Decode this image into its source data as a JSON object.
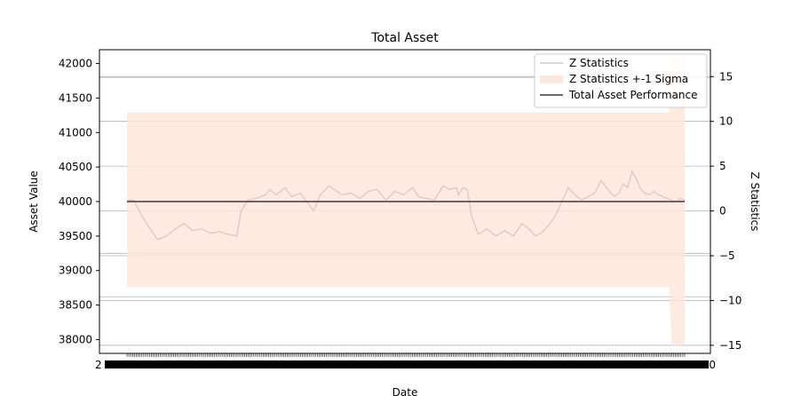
{
  "chart_data": {
    "type": "line",
    "title": "Total Asset",
    "xlabel": "Date",
    "ylabel": "Asset Value",
    "y2label": "Z Statistics",
    "ylim": [
      37800,
      42200
    ],
    "y2lim": [
      -15.9,
      18.0
    ],
    "yticks": [
      38000,
      38500,
      39000,
      39500,
      40000,
      40500,
      41000,
      41500,
      42000
    ],
    "y2ticks": [
      -15,
      -10,
      -5,
      0,
      5,
      10,
      15
    ],
    "x_tick_labels_overlapping": true,
    "x_tick_first_visible": "2",
    "x_tick_last_visible": "50",
    "grid": "horizontal, right axis",
    "legend_position": "top-right",
    "n_points": 300,
    "series": [
      {
        "name": "Z Statistics",
        "axis": "right",
        "color": "#d9c8c4",
        "points": [
          [
            0,
            1.2
          ],
          [
            6,
            1.2
          ],
          [
            12,
            -0.2
          ],
          [
            20,
            -1.8
          ],
          [
            28,
            -3.2
          ],
          [
            36,
            -2.8
          ],
          [
            44,
            -2.0
          ],
          [
            52,
            -1.4
          ],
          [
            60,
            -2.2
          ],
          [
            68,
            -2.0
          ],
          [
            76,
            -2.5
          ],
          [
            84,
            -2.3
          ],
          [
            92,
            -2.6
          ],
          [
            100,
            -2.8
          ],
          [
            104,
            0.0
          ],
          [
            110,
            1.2
          ],
          [
            118,
            1.4
          ],
          [
            126,
            1.8
          ],
          [
            130,
            2.4
          ],
          [
            136,
            1.8
          ],
          [
            144,
            2.6
          ],
          [
            150,
            1.6
          ],
          [
            158,
            2.0
          ],
          [
            164,
            1.0
          ],
          [
            170,
            0.0
          ],
          [
            176,
            1.8
          ],
          [
            184,
            2.8
          ],
          [
            190,
            2.3
          ],
          [
            196,
            1.8
          ],
          [
            204,
            2.0
          ],
          [
            212,
            1.4
          ],
          [
            220,
            2.2
          ],
          [
            228,
            2.4
          ],
          [
            236,
            1.2
          ],
          [
            244,
            2.2
          ],
          [
            252,
            1.8
          ],
          [
            260,
            2.6
          ],
          [
            266,
            1.6
          ],
          [
            272,
            1.4
          ],
          [
            280,
            1.2
          ],
          [
            288,
            2.8
          ],
          [
            294,
            2.4
          ],
          [
            300,
            2.6
          ],
          [
            302,
            1.8
          ],
          [
            306,
            2.6
          ],
          [
            310,
            2.4
          ],
          [
            314,
            -0.6
          ],
          [
            320,
            -2.6
          ],
          [
            328,
            -2.0
          ],
          [
            336,
            -2.8
          ],
          [
            344,
            -2.2
          ],
          [
            352,
            -2.8
          ],
          [
            360,
            -1.4
          ],
          [
            366,
            -2.0
          ],
          [
            372,
            -2.8
          ],
          [
            378,
            -2.4
          ],
          [
            384,
            -1.6
          ],
          [
            390,
            -0.6
          ],
          [
            396,
            1.0
          ],
          [
            402,
            2.6
          ],
          [
            408,
            1.8
          ],
          [
            414,
            1.2
          ],
          [
            420,
            1.6
          ],
          [
            426,
            2.0
          ],
          [
            432,
            3.4
          ],
          [
            438,
            2.4
          ],
          [
            444,
            1.6
          ],
          [
            448,
            2.0
          ],
          [
            452,
            3.0
          ],
          [
            456,
            2.6
          ],
          [
            460,
            4.4
          ],
          [
            464,
            3.6
          ],
          [
            468,
            2.4
          ],
          [
            472,
            2.0
          ],
          [
            476,
            1.8
          ],
          [
            480,
            2.2
          ],
          [
            484,
            1.8
          ],
          [
            488,
            1.6
          ],
          [
            492,
            1.4
          ],
          [
            496,
            1.2
          ],
          [
            500,
            1.0
          ],
          [
            504,
            1.4
          ],
          [
            508,
            1.2
          ]
        ]
      },
      {
        "name": "Z Statistics +-1 Sigma",
        "axis": "right",
        "type": "area",
        "color": "#fde8dc",
        "upper": [
          [
            0,
            11.0
          ],
          [
            494,
            11.0
          ],
          [
            496,
            17.5
          ],
          [
            508,
            17.5
          ]
        ],
        "lower": [
          [
            0,
            -8.5
          ],
          [
            494,
            -8.5
          ],
          [
            496,
            -15.0
          ],
          [
            508,
            -15.0
          ]
        ]
      },
      {
        "name": "Total Asset Performance",
        "axis": "left",
        "color": "#4a3340",
        "points": [
          [
            0,
            40000
          ],
          [
            508,
            40000
          ]
        ]
      }
    ]
  }
}
